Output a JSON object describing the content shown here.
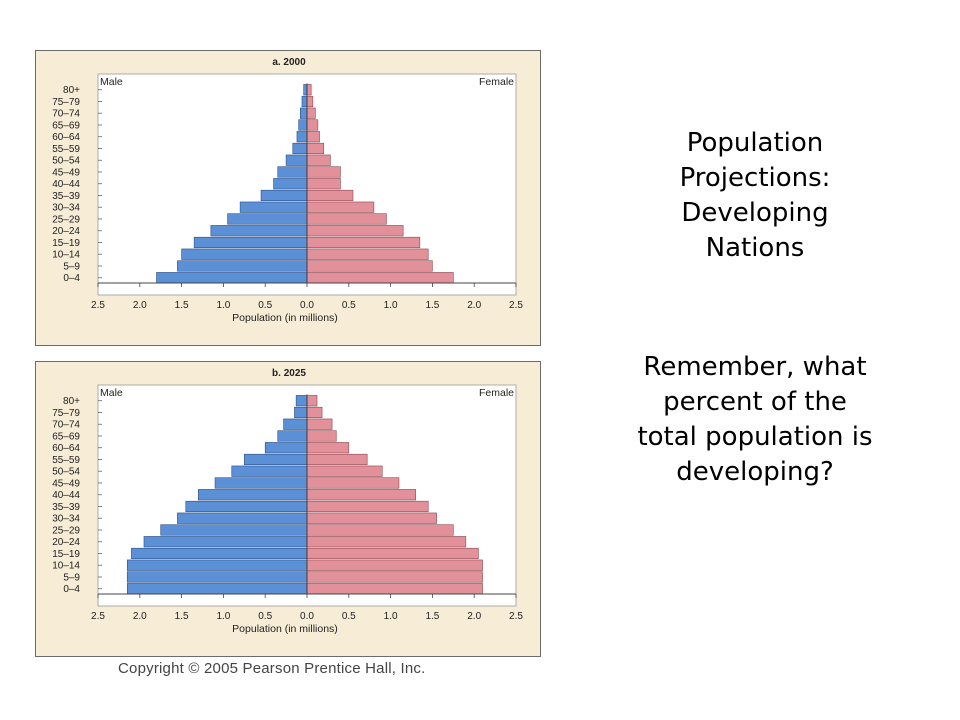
{
  "side_text": {
    "title_lines": [
      "Population",
      "Projections:",
      "Developing",
      "Nations"
    ],
    "question_lines": [
      "Remember, what",
      "percent of the",
      "total population is",
      "developing?"
    ]
  },
  "copyright": "Copyright © 2005 Pearson Prentice Hall, Inc.",
  "colors": {
    "male": "#5b8fd6",
    "female": "#e2909a",
    "panel_bg": "#f7ecd6",
    "plot_bg": "#ffffff"
  },
  "chart_data": [
    {
      "type": "bar",
      "title": "a. 2000",
      "left_label": "Male",
      "right_label": "Female",
      "xlabel": "Population (in millions)",
      "xlim": [
        -2.5,
        2.5
      ],
      "x_ticks": [
        "2.5",
        "2.0",
        "1.5",
        "1.0",
        "0.5",
        "0.0",
        "0.5",
        "1.0",
        "1.5",
        "2.0",
        "2.5"
      ],
      "categories": [
        "0–4",
        "5–9",
        "10–14",
        "15–19",
        "20–24",
        "25–29",
        "30–34",
        "35–39",
        "40–44",
        "45–49",
        "50–54",
        "55–59",
        "60–64",
        "65–69",
        "70–74",
        "75–79",
        "80+"
      ],
      "series": [
        {
          "name": "Male",
          "values": [
            1.8,
            1.55,
            1.5,
            1.35,
            1.15,
            0.95,
            0.8,
            0.55,
            0.4,
            0.35,
            0.25,
            0.17,
            0.12,
            0.1,
            0.08,
            0.06,
            0.04
          ]
        },
        {
          "name": "Female",
          "values": [
            1.75,
            1.5,
            1.45,
            1.35,
            1.15,
            0.95,
            0.8,
            0.55,
            0.4,
            0.4,
            0.28,
            0.2,
            0.15,
            0.13,
            0.1,
            0.07,
            0.05
          ]
        }
      ]
    },
    {
      "type": "bar",
      "title": "b. 2025",
      "left_label": "Male",
      "right_label": "Female",
      "xlabel": "Population (in millions)",
      "xlim": [
        -2.5,
        2.5
      ],
      "x_ticks": [
        "2.5",
        "2.0",
        "1.5",
        "1.0",
        "0.5",
        "0.0",
        "0.5",
        "1.0",
        "1.5",
        "2.0",
        "2.5"
      ],
      "categories": [
        "0–4",
        "5–9",
        "10–14",
        "15–19",
        "20–24",
        "25–29",
        "30–34",
        "35–39",
        "40–44",
        "45–49",
        "50–54",
        "55–59",
        "60–64",
        "65–69",
        "70–74",
        "75–79",
        "80+"
      ],
      "series": [
        {
          "name": "Male",
          "values": [
            2.15,
            2.15,
            2.15,
            2.1,
            1.95,
            1.75,
            1.55,
            1.45,
            1.3,
            1.1,
            0.9,
            0.75,
            0.5,
            0.35,
            0.28,
            0.15,
            0.13
          ]
        },
        {
          "name": "Female",
          "values": [
            2.1,
            2.1,
            2.1,
            2.05,
            1.9,
            1.75,
            1.55,
            1.45,
            1.3,
            1.1,
            0.9,
            0.72,
            0.5,
            0.35,
            0.3,
            0.18,
            0.12
          ]
        }
      ]
    }
  ]
}
